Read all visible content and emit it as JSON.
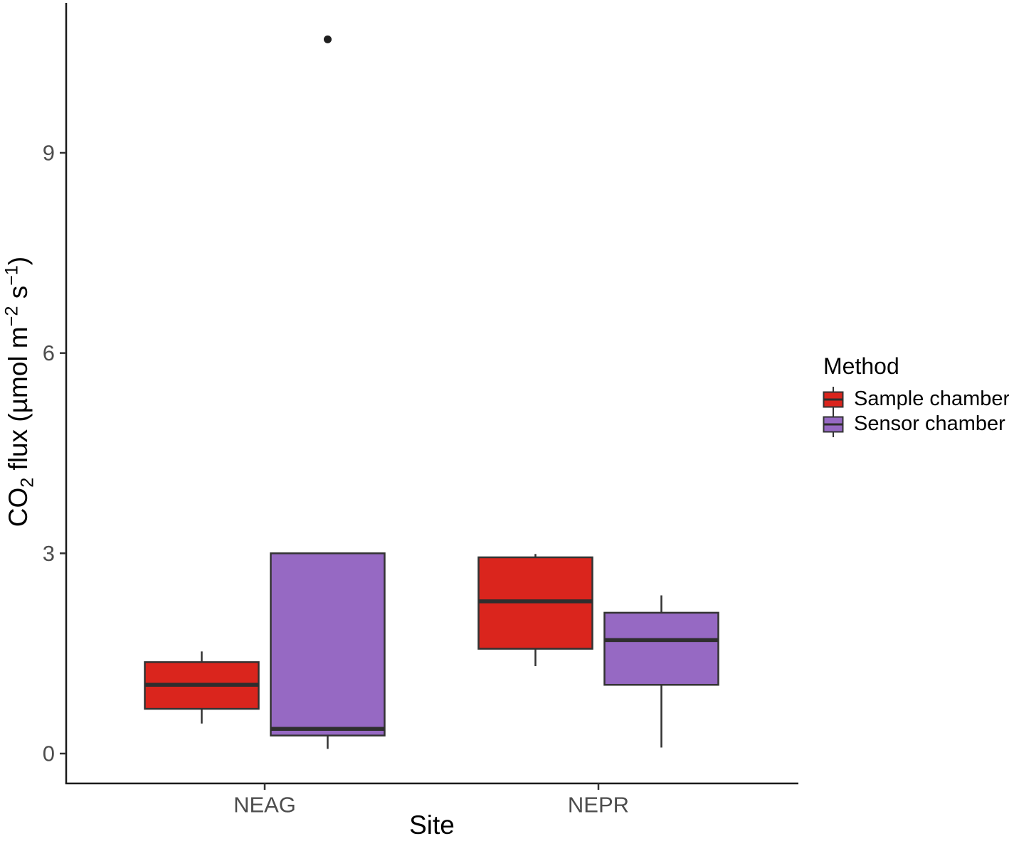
{
  "chart_data": {
    "type": "boxplot",
    "title": "",
    "xlabel": "Site",
    "ylabel": "CO₂ flux (µmol m⁻² s⁻¹)",
    "ylabel_parts": [
      {
        "text": "CO"
      },
      {
        "text": "2",
        "script": "sub"
      },
      {
        "text": " flux (µmol m"
      },
      {
        "text": "−2",
        "script": "sup"
      },
      {
        "text": " s"
      },
      {
        "text": "−1",
        "script": "sup"
      },
      {
        "text": ")"
      }
    ],
    "categories": [
      "NEAG",
      "NEPR"
    ],
    "yticks": [
      0,
      3,
      6,
      9
    ],
    "ylim": [
      -0.45,
      11.3
    ],
    "grid": false,
    "legend": {
      "title": "Method",
      "position": "right"
    },
    "series": [
      {
        "name": "Sample chamber",
        "color": "#DA251D",
        "boxes": [
          {
            "category": "NEAG",
            "whisker_low": 0.45,
            "q1": 0.67,
            "median": 1.03,
            "q3": 1.37,
            "whisker_high": 1.53,
            "outliers": []
          },
          {
            "category": "NEPR",
            "whisker_low": 1.31,
            "q1": 1.57,
            "median": 2.28,
            "q3": 2.94,
            "whisker_high": 2.99,
            "outliers": []
          }
        ]
      },
      {
        "name": "Sensor chamber",
        "color": "#9669C3",
        "boxes": [
          {
            "category": "NEAG",
            "whisker_low": 0.07,
            "q1": 0.27,
            "median": 0.37,
            "q3": 3.0,
            "whisker_high": 3.0,
            "outliers": [
              10.7
            ]
          },
          {
            "category": "NEPR",
            "whisker_low": 0.09,
            "q1": 1.03,
            "median": 1.7,
            "q3": 2.11,
            "whisker_high": 2.37,
            "outliers": []
          }
        ]
      }
    ]
  }
}
